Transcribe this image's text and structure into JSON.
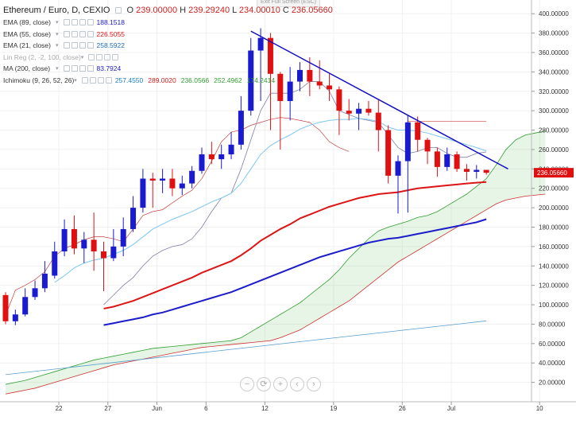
{
  "exit_label": "Exit Full Screen (ESC)",
  "legend": {
    "title": "Ethereum / Euro, D, CEXIO",
    "ohlc": [
      {
        "label": "O",
        "value": "239.00000"
      },
      {
        "label": "H",
        "value": "239.29240"
      },
      {
        "label": "L",
        "value": "234.00010"
      },
      {
        "label": "C",
        "value": "236.05660"
      }
    ],
    "rows": [
      {
        "label": "EMA (89, close)",
        "values": [
          "188.1518"
        ]
      },
      {
        "label": "EMA (55, close)",
        "values": [
          "226.5055"
        ]
      },
      {
        "label": "EMA (21, close)",
        "values": [
          "258.5922"
        ]
      },
      {
        "label": "Lin Reg (2, -2, 100, close)",
        "values": []
      },
      {
        "label": "MA (200, close)",
        "values": [
          "83.7924"
        ]
      },
      {
        "label": "Ichimoku (9, 26, 52, 26)",
        "values": [
          "257.4550",
          "289.0020",
          "236.0566",
          "252.4962",
          "174.2414"
        ]
      }
    ]
  },
  "zoom_controls": [
    "zoom-out-icon",
    "reset-icon",
    "zoom-in-icon",
    "scroll-left-icon",
    "scroll-right-icon"
  ],
  "zoom_glyphs": [
    "−",
    "⟳",
    "+",
    "‹",
    "›"
  ],
  "chart_data": {
    "type": "candlestick",
    "title": "Ethereum / Euro, D, CEXIO",
    "ylim": [
      0,
      410
    ],
    "y_ticks": [
      "20.00000",
      "40.00000",
      "60.00000",
      "80.00000",
      "100.00000",
      "120.00000",
      "140.00000",
      "160.00000",
      "180.00000",
      "200.00000",
      "220.00000",
      "240.00000",
      "260.00000",
      "280.00000",
      "300.00000",
      "320.00000",
      "340.00000",
      "360.00000",
      "380.00000",
      "400.00000"
    ],
    "x_ticks": [
      {
        "label": "22",
        "index": 3
      },
      {
        "label": "27",
        "index": 8
      },
      {
        "label": "Jun",
        "index": 13
      },
      {
        "label": "6",
        "index": 18
      },
      {
        "label": "12",
        "index": 24
      },
      {
        "label": "19",
        "index": 31
      },
      {
        "label": "26",
        "index": 38
      },
      {
        "label": "Jul",
        "index": 43
      },
      {
        "label": "10",
        "index": 52
      }
    ],
    "last_price": {
      "value": 236.0566,
      "label": "236.05660"
    },
    "candles": [
      [
        110,
        83,
        113,
        80
      ],
      [
        83,
        90,
        95,
        79
      ],
      [
        90,
        108,
        117,
        88
      ],
      [
        108,
        117,
        125,
        105
      ],
      [
        117,
        132,
        145,
        113
      ],
      [
        130,
        155,
        165,
        127
      ],
      [
        155,
        178,
        188,
        150
      ],
      [
        178,
        158,
        192,
        152
      ],
      [
        158,
        167,
        175,
        143
      ],
      [
        167,
        155,
        195,
        135
      ],
      [
        155,
        148,
        165,
        114
      ],
      [
        148,
        160,
        178,
        145
      ],
      [
        160,
        178,
        190,
        150
      ],
      [
        178,
        200,
        212,
        175
      ],
      [
        200,
        230,
        240,
        195
      ],
      [
        230,
        228,
        236,
        200
      ],
      [
        228,
        230,
        240,
        215
      ],
      [
        230,
        220,
        240,
        212
      ],
      [
        220,
        225,
        233,
        213
      ],
      [
        225,
        238,
        243,
        220
      ],
      [
        238,
        255,
        262,
        235
      ],
      [
        255,
        250,
        268,
        245
      ],
      [
        250,
        255,
        265,
        240
      ],
      [
        255,
        265,
        278,
        250
      ],
      [
        265,
        300,
        315,
        260
      ],
      [
        300,
        362,
        375,
        295
      ],
      [
        362,
        375,
        385,
        310
      ],
      [
        375,
        338,
        380,
        280
      ],
      [
        338,
        310,
        340,
        260
      ],
      [
        310,
        330,
        345,
        290
      ],
      [
        330,
        342,
        350,
        320
      ],
      [
        342,
        330,
        355,
        315
      ],
      [
        330,
        326,
        352,
        322
      ],
      [
        326,
        322,
        338,
        310
      ],
      [
        322,
        300,
        325,
        275
      ],
      [
        300,
        297,
        312,
        290
      ],
      [
        297,
        302,
        308,
        280
      ],
      [
        302,
        298,
        310,
        295
      ],
      [
        298,
        280,
        312,
        258
      ],
      [
        280,
        233,
        285,
        225
      ],
      [
        233,
        248,
        254,
        194
      ],
      [
        248,
        288,
        295,
        195
      ],
      [
        288,
        270,
        294,
        258
      ],
      [
        270,
        258,
        272,
        245
      ],
      [
        258,
        242,
        262,
        232
      ],
      [
        242,
        255,
        262,
        238
      ],
      [
        255,
        240,
        258,
        237
      ],
      [
        240,
        237,
        245,
        228
      ],
      [
        237,
        239,
        244,
        230
      ],
      [
        239,
        236,
        239,
        234
      ]
    ],
    "series": [
      {
        "name": "EMA (21, close)",
        "color": "#7cc7ee",
        "width": 1,
        "values": [
          null,
          null,
          null,
          null,
          null,
          123,
          130,
          138,
          143,
          146,
          148,
          152,
          156,
          162,
          170,
          178,
          183,
          188,
          192,
          196,
          201,
          206,
          210,
          215,
          225,
          240,
          255,
          264,
          270,
          275,
          281,
          285,
          288,
          290,
          291,
          291,
          292,
          291,
          289,
          283,
          280,
          280,
          279,
          277,
          274,
          271,
          268,
          265,
          262,
          258.6
        ]
      },
      {
        "name": "EMA (55, close)",
        "color": "#dd1515",
        "width": 2,
        "values": [
          null,
          null,
          null,
          null,
          null,
          null,
          null,
          null,
          null,
          null,
          96,
          98,
          101,
          104,
          108,
          112,
          116,
          120,
          124,
          128,
          133,
          137,
          141,
          145,
          151,
          158,
          166,
          172,
          178,
          183,
          189,
          193,
          197,
          201,
          204,
          207,
          210,
          212,
          214,
          215,
          216,
          218,
          220,
          221,
          222,
          223,
          224,
          225,
          225.8,
          226.5
        ]
      },
      {
        "name": "EMA (89, close)",
        "color": "#1c1ccb",
        "width": 2,
        "values": [
          null,
          null,
          null,
          null,
          null,
          null,
          null,
          null,
          null,
          null,
          79,
          81,
          83,
          85,
          87,
          90,
          92,
          95,
          98,
          101,
          104,
          107,
          110,
          113,
          117,
          121,
          125,
          129,
          133,
          137,
          141,
          145,
          149,
          152,
          155,
          158,
          161,
          164,
          166,
          168,
          169,
          171,
          173,
          175,
          177,
          179,
          181,
          183,
          185,
          188.2
        ]
      },
      {
        "name": "MA (200, close)",
        "color": "#5a9fd0",
        "width": 1,
        "values": [
          null,
          null,
          null,
          null,
          null,
          null,
          null,
          null,
          null,
          null,
          null,
          null,
          null,
          null,
          null,
          null,
          null,
          null,
          null,
          null,
          null,
          null,
          null,
          null,
          null,
          null,
          null,
          null,
          null,
          null,
          null,
          null,
          null,
          null,
          null,
          null,
          null,
          null,
          null,
          null,
          null,
          null,
          null,
          null,
          null,
          null,
          null,
          null,
          null,
          83.8
        ]
      },
      {
        "name": "Ichimoku Tenkan",
        "color": "#f0a0a0",
        "width": 1,
        "values": [
          null,
          null,
          null,
          null,
          null,
          null,
          null,
          null,
          null,
          null,
          null,
          null,
          null,
          null,
          null,
          null,
          null,
          null,
          null,
          null,
          null,
          null,
          null,
          null,
          null,
          null,
          null,
          null,
          null,
          null,
          null,
          null,
          null,
          null,
          null,
          null,
          null,
          null,
          null,
          null,
          null,
          null,
          null,
          null,
          null,
          null,
          null,
          null,
          null,
          257.5
        ]
      },
      {
        "name": "Ichimoku Kijun",
        "color": "#777799",
        "width": 1,
        "values": [
          null,
          null,
          null,
          null,
          null,
          null,
          null,
          null,
          null,
          null,
          null,
          null,
          null,
          null,
          null,
          null,
          null,
          null,
          null,
          null,
          null,
          null,
          null,
          null,
          null,
          null,
          null,
          null,
          null,
          null,
          null,
          null,
          null,
          null,
          null,
          null,
          null,
          null,
          null,
          null,
          null,
          null,
          null,
          null,
          null,
          null,
          null,
          null,
          null,
          289.0
        ]
      }
    ],
    "trendline": {
      "color": "#1010c0",
      "points": [
        [
          25,
          382
        ],
        [
          50,
          240
        ]
      ]
    },
    "kumo": {
      "span_a_color": "#2f9e2f",
      "span_b_color": "#d03030",
      "fill_color": "rgba(120,200,120,0.18)",
      "start_index": 0,
      "span_a": [
        18,
        20,
        22,
        25,
        28,
        31,
        34,
        37,
        40,
        43,
        45,
        47,
        49,
        51,
        53,
        55,
        56,
        57,
        58,
        59,
        60,
        61,
        62,
        63,
        66,
        72,
        78,
        84,
        90,
        96,
        102,
        110,
        118,
        126,
        136,
        148,
        158,
        168,
        176,
        180,
        183,
        186,
        190,
        192,
        196,
        202,
        208,
        214,
        222,
        230,
        244,
        260,
        270,
        275,
        277,
        279
      ],
      "span_b": [
        8,
        10,
        12,
        14,
        17,
        20,
        23,
        26,
        29,
        32,
        35,
        38,
        40,
        42,
        44,
        46,
        48,
        50,
        52,
        54,
        56,
        57,
        58,
        59,
        60,
        61,
        62,
        63,
        66,
        70,
        74,
        80,
        86,
        92,
        98,
        104,
        112,
        120,
        128,
        136,
        144,
        150,
        156,
        162,
        168,
        174,
        180,
        186,
        192,
        198,
        204,
        208,
        210,
        212,
        213,
        214
      ]
    },
    "chikou": {
      "color": "#c02020",
      "values": [
        89,
        115,
        120,
        126,
        134,
        150,
        158,
        162,
        167,
        170,
        170,
        168,
        165,
        178,
        192,
        196,
        198,
        205,
        212,
        218,
        230,
        248,
        268,
        278,
        280,
        285,
        288,
        291,
        293,
        292,
        290,
        288,
        280,
        268,
        262,
        258
      ]
    },
    "blue_legacy": {
      "color": "#2f8f2f",
      "values": [
        null
      ]
    }
  }
}
